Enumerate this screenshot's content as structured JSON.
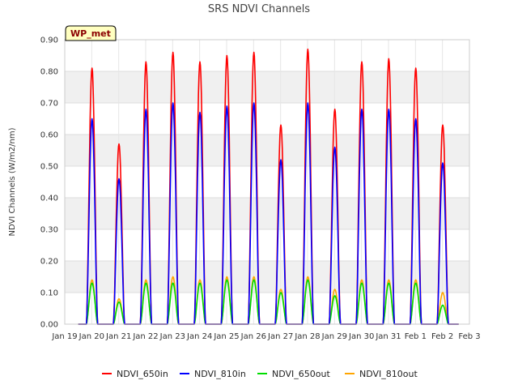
{
  "chart_data": {
    "type": "line",
    "title": "SRS NDVI Channels",
    "xlabel": "",
    "ylabel": "NDVI Channels (W/m2/nm)",
    "ylim": [
      0,
      0.9
    ],
    "yticks": [
      "0.00",
      "0.10",
      "0.20",
      "0.30",
      "0.40",
      "0.50",
      "0.60",
      "0.70",
      "0.80",
      "0.90"
    ],
    "xlim_days": [
      0,
      15
    ],
    "xticks": [
      "Jan 19",
      "Jan 20",
      "Jan 21",
      "Jan 22",
      "Jan 23",
      "Jan 24",
      "Jan 25",
      "Jan 26",
      "Jan 27",
      "Jan 28",
      "Jan 29",
      "Jan 30",
      "Jan 31",
      "Feb 1",
      "Feb 2",
      "Feb 3"
    ],
    "badge": "WP_met",
    "grid": true,
    "legend_position": "bottom",
    "series": [
      {
        "name": "NDVI_650in",
        "color": "#ff0000",
        "daily_peaks": [
          0.81,
          0.57,
          0.83,
          0.86,
          0.83,
          0.85,
          0.86,
          0.63,
          0.87,
          0.68,
          0.83,
          0.84,
          0.81,
          0.63
        ]
      },
      {
        "name": "NDVI_810in",
        "color": "#0000ff",
        "daily_peaks": [
          0.65,
          0.46,
          0.68,
          0.7,
          0.67,
          0.69,
          0.7,
          0.52,
          0.7,
          0.56,
          0.68,
          0.68,
          0.65,
          0.51
        ]
      },
      {
        "name": "NDVI_650out",
        "color": "#00dd00",
        "daily_peaks": [
          0.13,
          0.07,
          0.13,
          0.13,
          0.13,
          0.14,
          0.14,
          0.1,
          0.14,
          0.09,
          0.13,
          0.13,
          0.13,
          0.06
        ]
      },
      {
        "name": "NDVI_810out",
        "color": "#ffa500",
        "daily_peaks": [
          0.14,
          0.08,
          0.14,
          0.15,
          0.14,
          0.15,
          0.15,
          0.11,
          0.15,
          0.11,
          0.14,
          0.14,
          0.14,
          0.1
        ]
      }
    ],
    "day_window": {
      "start": 0.3,
      "end": 0.72
    },
    "first_day_offset": 0.5
  }
}
